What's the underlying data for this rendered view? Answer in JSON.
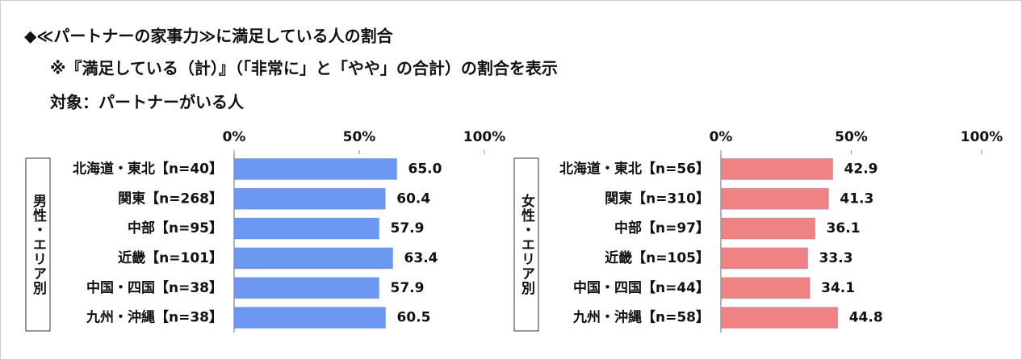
{
  "header": {
    "title": "◆≪パートナーの家事力≫に満足している人の割合",
    "note": "※『満足している（計）』（「非常に」と「やや」の合計）の割合を表示",
    "target": "対象：パートナーがいる人"
  },
  "chart_data": [
    {
      "type": "bar",
      "group_label": "男性・エリア別",
      "color": "#6d98f2",
      "categories": [
        "北海道・東北【n=40】",
        "関東【n=268】",
        "中部【n=95】",
        "近畿【n=101】",
        "中国・四国【n=38】",
        "九州・沖縄【n=38】"
      ],
      "values": [
        65.0,
        60.4,
        57.9,
        63.4,
        57.9,
        60.5
      ],
      "value_labels": [
        "65.0",
        "60.4",
        "57.9",
        "63.4",
        "57.9",
        "60.5"
      ],
      "xlim": [
        0,
        100
      ],
      "xticks": [
        {
          "value": 0,
          "label": "0%"
        },
        {
          "value": 50,
          "label": "50%"
        },
        {
          "value": 100,
          "label": "100%"
        }
      ]
    },
    {
      "type": "bar",
      "group_label": "女性・エリア別",
      "color": "#ef8384",
      "categories": [
        "北海道・東北【n=56】",
        "関東【n=310】",
        "中部【n=97】",
        "近畿【n=105】",
        "中国・四国【n=44】",
        "九州・沖縄【n=58】"
      ],
      "values": [
        42.9,
        41.3,
        36.1,
        33.3,
        34.1,
        44.8
      ],
      "value_labels": [
        "42.9",
        "41.3",
        "36.1",
        "33.3",
        "34.1",
        "44.8"
      ],
      "xlim": [
        0,
        100
      ],
      "xticks": [
        {
          "value": 0,
          "label": "0%"
        },
        {
          "value": 50,
          "label": "50%"
        },
        {
          "value": 100,
          "label": "100%"
        }
      ]
    }
  ]
}
